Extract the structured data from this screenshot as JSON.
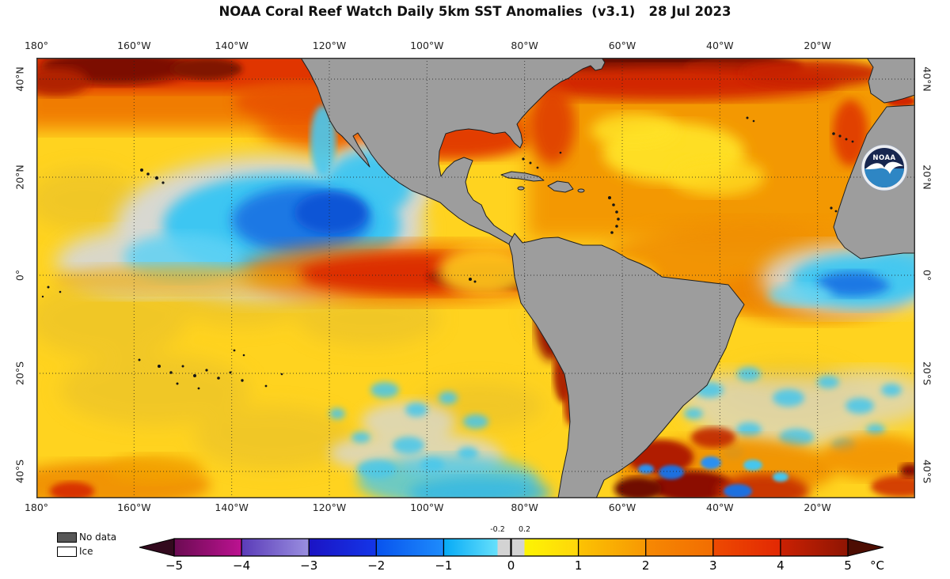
{
  "title": "NOAA Coral Reef Watch Daily 5km SST Anomalies  (v3.1)   28 Jul 2023",
  "axes": {
    "top": [
      "180°",
      "160°W",
      "140°W",
      "120°W",
      "100°W",
      "80°W",
      "60°W",
      "40°W",
      "20°W"
    ],
    "bottom": [
      "180°",
      "160°W",
      "140°W",
      "120°W",
      "100°W",
      "80°W",
      "60°W",
      "40°W",
      "20°W"
    ],
    "left": [
      "40°N",
      "20°N",
      "0°",
      "20°S",
      "40°S"
    ],
    "right": [
      "40°N",
      "20°N",
      "0°",
      "20°S",
      "40°S"
    ]
  },
  "legend": {
    "no_data_label": "No data",
    "ice_label": "Ice",
    "no_data_color": "#575757",
    "ice_color": "#ffffff"
  },
  "colorbar": {
    "ticks": [
      "−5",
      "−4",
      "−3",
      "−2",
      "−1",
      "0",
      "1",
      "2",
      "3",
      "4",
      "5"
    ],
    "sub_ticks": [
      "-0.2",
      "0.2"
    ],
    "units": "°C",
    "range_c": [
      -5,
      5
    ],
    "near_zero_gray_band": [
      -0.2,
      0.2
    ],
    "segment_colors": [
      "#6b0b52",
      "#5a3bb8",
      "#1b13c4",
      "#0853ee",
      "#06aaf6",
      "#d3d3d3",
      "#fdf403",
      "#fcc303",
      "#f68903",
      "#ee4a02",
      "#cb2103"
    ]
  },
  "logo": {
    "text": "NOAA"
  },
  "map": {
    "land_color": "#9d9d9d",
    "ocean_base_color": "#ffd31f"
  }
}
